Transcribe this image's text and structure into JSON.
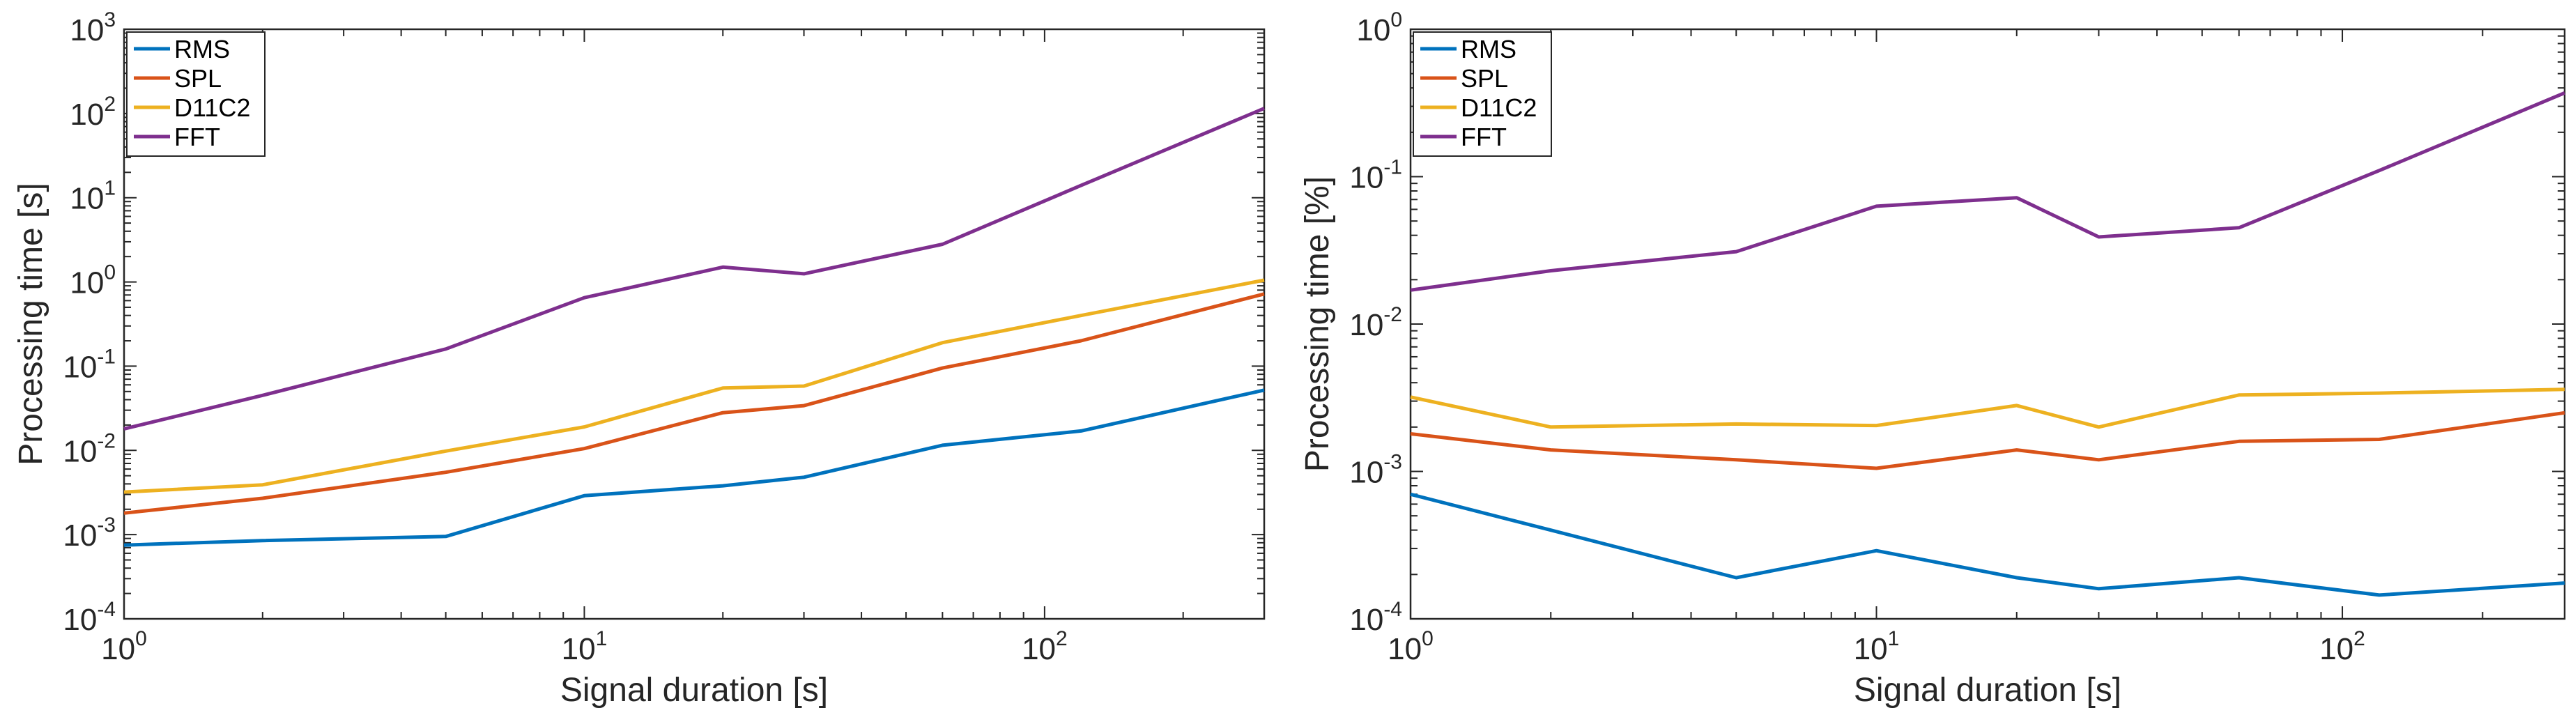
{
  "colors": {
    "RMS": "#0072BD",
    "SPL": "#D95319",
    "D11C2": "#EDB120",
    "FFT": "#7E2F8E"
  },
  "chart_data": [
    {
      "type": "line",
      "xscale": "log",
      "yscale": "log",
      "xlabel": "Signal duration [s]",
      "ylabel": "Processing time [s]",
      "xlim": [
        1,
        300
      ],
      "ylim": [
        0.0001,
        1000
      ],
      "xticks": [
        {
          "base": "10",
          "exp": "0"
        },
        {
          "base": "10",
          "exp": "1"
        },
        {
          "base": "10",
          "exp": "2"
        }
      ],
      "yticks": [
        {
          "base": "10",
          "exp": "-4"
        },
        {
          "base": "10",
          "exp": "-3"
        },
        {
          "base": "10",
          "exp": "-2"
        },
        {
          "base": "10",
          "exp": "-1"
        },
        {
          "base": "10",
          "exp": "0"
        },
        {
          "base": "10",
          "exp": "1"
        },
        {
          "base": "10",
          "exp": "2"
        },
        {
          "base": "10",
          "exp": "3"
        }
      ],
      "legend_position": "top-left",
      "x": [
        1,
        2,
        5,
        10,
        20,
        30,
        60,
        120,
        300
      ],
      "series": [
        {
          "name": "RMS",
          "values": [
            0.00075,
            0.00085,
            0.00095,
            0.0029,
            0.0038,
            0.0048,
            0.0115,
            0.017,
            0.052
          ]
        },
        {
          "name": "SPL",
          "values": [
            0.0018,
            0.0027,
            0.0055,
            0.0105,
            0.028,
            0.034,
            0.095,
            0.2,
            0.72
          ]
        },
        {
          "name": "D11C2",
          "values": [
            0.0032,
            0.0039,
            0.0098,
            0.019,
            0.055,
            0.058,
            0.19,
            0.4,
            1.05
          ]
        },
        {
          "name": "FFT",
          "values": [
            0.018,
            0.045,
            0.16,
            0.65,
            1.5,
            1.25,
            2.8,
            14,
            115
          ]
        }
      ]
    },
    {
      "type": "line",
      "xscale": "log",
      "yscale": "log",
      "xlabel": "Signal duration [s]",
      "ylabel": "Processing time [%]",
      "xlim": [
        1,
        300
      ],
      "ylim": [
        0.0001,
        1
      ],
      "xticks": [
        {
          "base": "10",
          "exp": "0"
        },
        {
          "base": "10",
          "exp": "1"
        },
        {
          "base": "10",
          "exp": "2"
        }
      ],
      "yticks": [
        {
          "base": "10",
          "exp": "-4"
        },
        {
          "base": "10",
          "exp": "-3"
        },
        {
          "base": "10",
          "exp": "-2"
        },
        {
          "base": "10",
          "exp": "-1"
        },
        {
          "base": "10",
          "exp": "0"
        }
      ],
      "legend_position": "top-left",
      "x": [
        1,
        2,
        5,
        10,
        20,
        30,
        60,
        120,
        300
      ],
      "series": [
        {
          "name": "RMS",
          "values": [
            0.0007,
            0.0004,
            0.00019,
            0.00029,
            0.00019,
            0.00016,
            0.00019,
            0.000145,
            0.000175
          ]
        },
        {
          "name": "SPL",
          "values": [
            0.0018,
            0.0014,
            0.0012,
            0.00105,
            0.0014,
            0.0012,
            0.0016,
            0.00165,
            0.0025
          ]
        },
        {
          "name": "D11C2",
          "values": [
            0.0032,
            0.002,
            0.0021,
            0.00205,
            0.0028,
            0.002,
            0.0033,
            0.0034,
            0.0036
          ]
        },
        {
          "name": "FFT",
          "values": [
            0.017,
            0.023,
            0.031,
            0.063,
            0.072,
            0.039,
            0.045,
            0.11,
            0.37
          ]
        }
      ]
    }
  ]
}
